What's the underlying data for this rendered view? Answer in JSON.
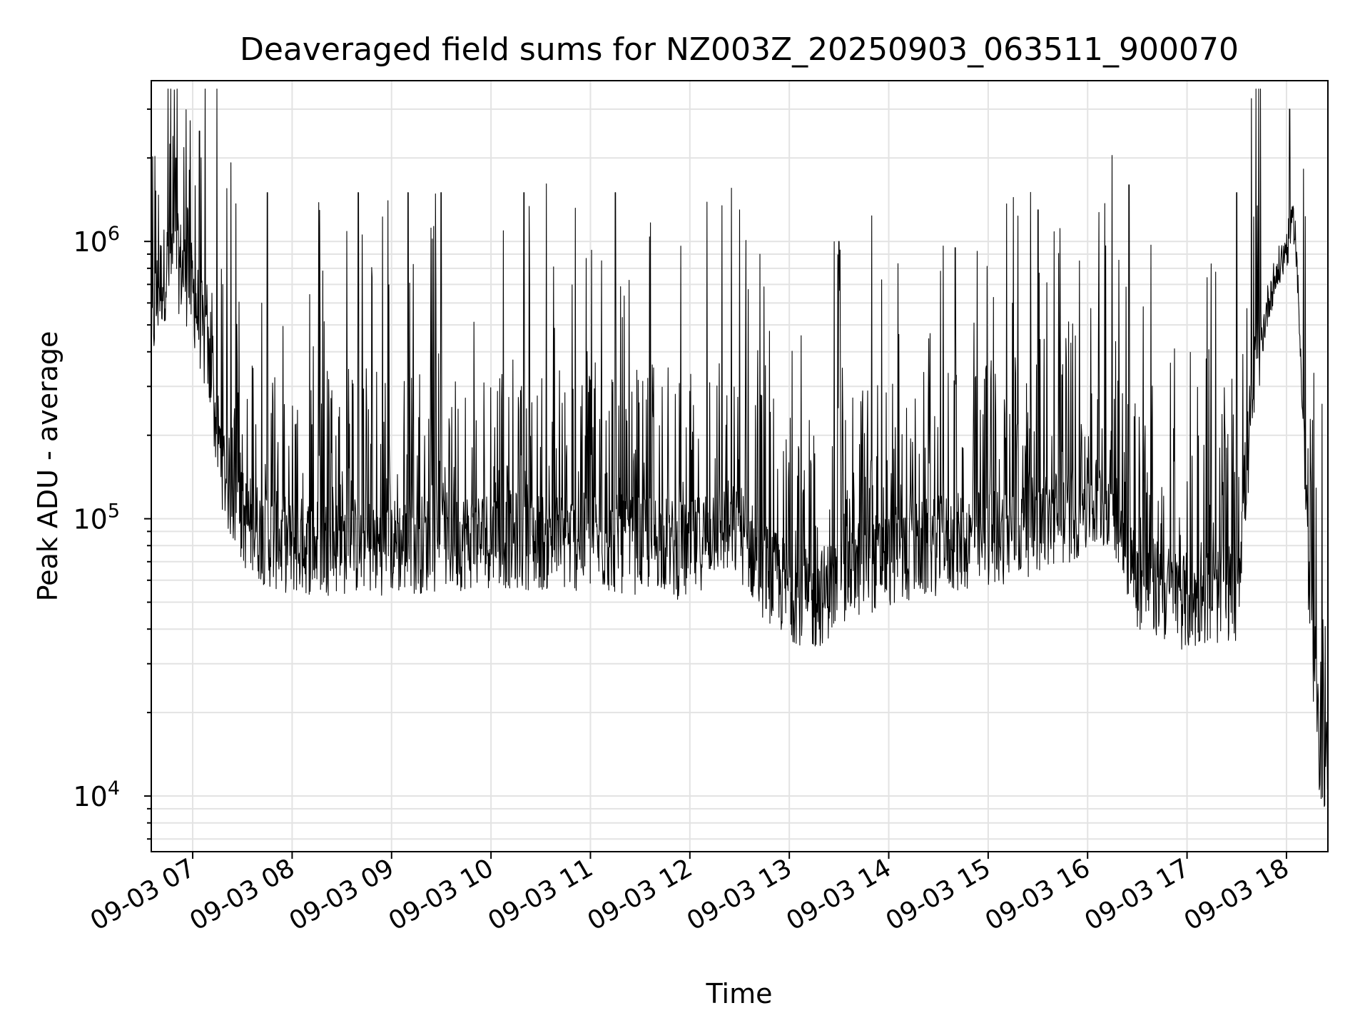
{
  "chart_data": {
    "type": "line",
    "title": "Deaveraged field sums for NZ003Z_20250903_063511_900070",
    "xlabel": "Time",
    "ylabel": "Peak ADU - average",
    "y_scale": "log",
    "ylim": [
      6300,
      3800000
    ],
    "xlim": [
      "2025-09-03 06:35",
      "2025-09-03 18:25"
    ],
    "grid": true,
    "x_ticks": [
      "09-03 07",
      "09-03 08",
      "09-03 09",
      "09-03 10",
      "09-03 11",
      "09-03 12",
      "09-03 13",
      "09-03 14",
      "09-03 15",
      "09-03 16",
      "09-03 17",
      "09-03 18"
    ],
    "y_ticks": [
      {
        "value": 10000,
        "base": "10",
        "exp": "4"
      },
      {
        "value": 100000,
        "base": "10",
        "exp": "5"
      },
      {
        "value": 1000000,
        "base": "10",
        "exp": "6"
      }
    ],
    "series": [
      {
        "color": "#000000",
        "points": [
          [
            "2025-09-03 06:35",
            480000
          ],
          [
            "2025-09-03 06:40",
            700000
          ],
          [
            "2025-09-03 06:45",
            820000
          ],
          [
            "2025-09-03 06:50",
            850000
          ],
          [
            "2025-09-03 06:55",
            780000
          ],
          [
            "2025-09-03 07:00",
            650000
          ],
          [
            "2025-09-03 07:05",
            500000
          ],
          [
            "2025-09-03 07:10",
            350000
          ],
          [
            "2025-09-03 07:15",
            200000
          ],
          [
            "2025-09-03 07:20",
            140000
          ],
          [
            "2025-09-03 07:30",
            100000
          ],
          [
            "2025-09-03 07:45",
            85000
          ],
          [
            "2025-09-03 08:00",
            80000
          ],
          [
            "2025-09-03 08:30",
            80000
          ],
          [
            "2025-09-03 09:00",
            80000
          ],
          [
            "2025-09-03 09:30",
            82000
          ],
          [
            "2025-09-03 10:00",
            85000
          ],
          [
            "2025-09-03 10:30",
            83000
          ],
          [
            "2025-09-03 11:00",
            82000
          ],
          [
            "2025-09-03 11:30",
            80000
          ],
          [
            "2025-09-03 11:40",
            85000
          ],
          [
            "2025-09-03 11:50",
            78000
          ],
          [
            "2025-09-03 12:00",
            75000
          ],
          [
            "2025-09-03 12:15",
            95000
          ],
          [
            "2025-09-03 12:30",
            90000
          ],
          [
            "2025-09-03 12:45",
            65000
          ],
          [
            "2025-09-03 13:00",
            55000
          ],
          [
            "2025-09-03 13:15",
            50000
          ],
          [
            "2025-09-03 13:30",
            60000
          ],
          [
            "2025-09-03 13:45",
            68000
          ],
          [
            "2025-09-03 14:00",
            72000
          ],
          [
            "2025-09-03 14:30",
            80000
          ],
          [
            "2025-09-03 15:00",
            85000
          ],
          [
            "2025-09-03 15:30",
            95000
          ],
          [
            "2025-09-03 16:00",
            110000
          ],
          [
            "2025-09-03 16:15",
            120000
          ],
          [
            "2025-09-03 16:30",
            60000
          ],
          [
            "2025-09-03 17:00",
            50000
          ],
          [
            "2025-09-03 17:30",
            55000
          ],
          [
            "2025-09-03 17:40",
            300000
          ],
          [
            "2025-09-03 17:50",
            650000
          ],
          [
            "2025-09-03 18:00",
            950000
          ],
          [
            "2025-09-03 18:05",
            1200000
          ],
          [
            "2025-09-03 18:10",
            250000
          ],
          [
            "2025-09-03 18:15",
            30000
          ],
          [
            "2025-09-03 18:20",
            15000
          ],
          [
            "2025-09-03 18:24",
            13000
          ]
        ],
        "spikes": [
          [
            "2025-09-03 06:50",
            2000000
          ],
          [
            "2025-09-03 07:04",
            2500000
          ],
          [
            "2025-09-03 07:45",
            1500000
          ],
          [
            "2025-09-03 08:40",
            1500000
          ],
          [
            "2025-09-03 09:10",
            1500000
          ],
          [
            "2025-09-03 09:30",
            1500000
          ],
          [
            "2025-09-03 10:20",
            1500000
          ],
          [
            "2025-09-03 11:15",
            1500000
          ],
          [
            "2025-09-03 12:30",
            1300000
          ],
          [
            "2025-09-03 13:30",
            1000000
          ],
          [
            "2025-09-03 14:40",
            950000
          ],
          [
            "2025-09-03 15:30",
            1300000
          ],
          [
            "2025-09-03 16:25",
            1600000
          ],
          [
            "2025-09-03 17:30",
            1500000
          ],
          [
            "2025-09-03 18:02",
            3000000
          ]
        ]
      }
    ]
  }
}
